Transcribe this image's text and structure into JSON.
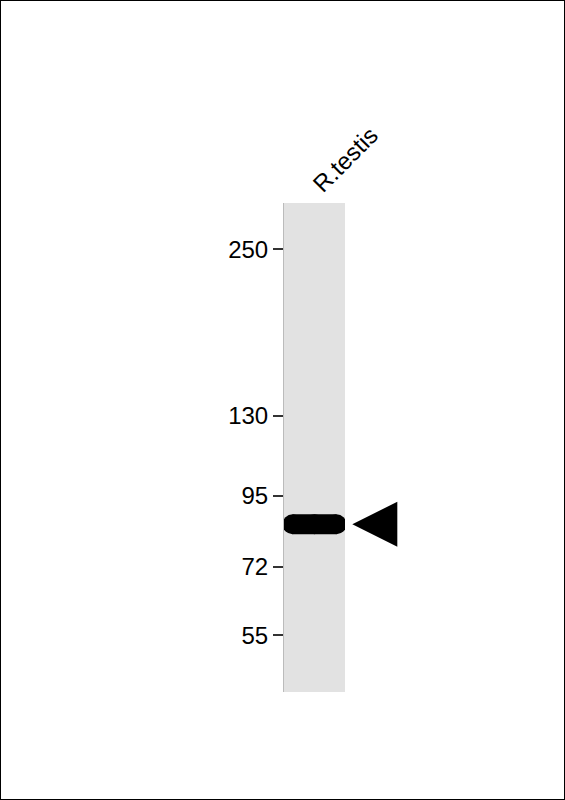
{
  "chart_data": {
    "type": "blot",
    "categories": [
      "R.testis"
    ],
    "values": [
      85
    ],
    "ylim": [
      44,
      300
    ],
    "yticks": [
      55,
      72,
      95,
      130,
      250
    ],
    "log": "y",
    "color": "#000000"
  }
}
